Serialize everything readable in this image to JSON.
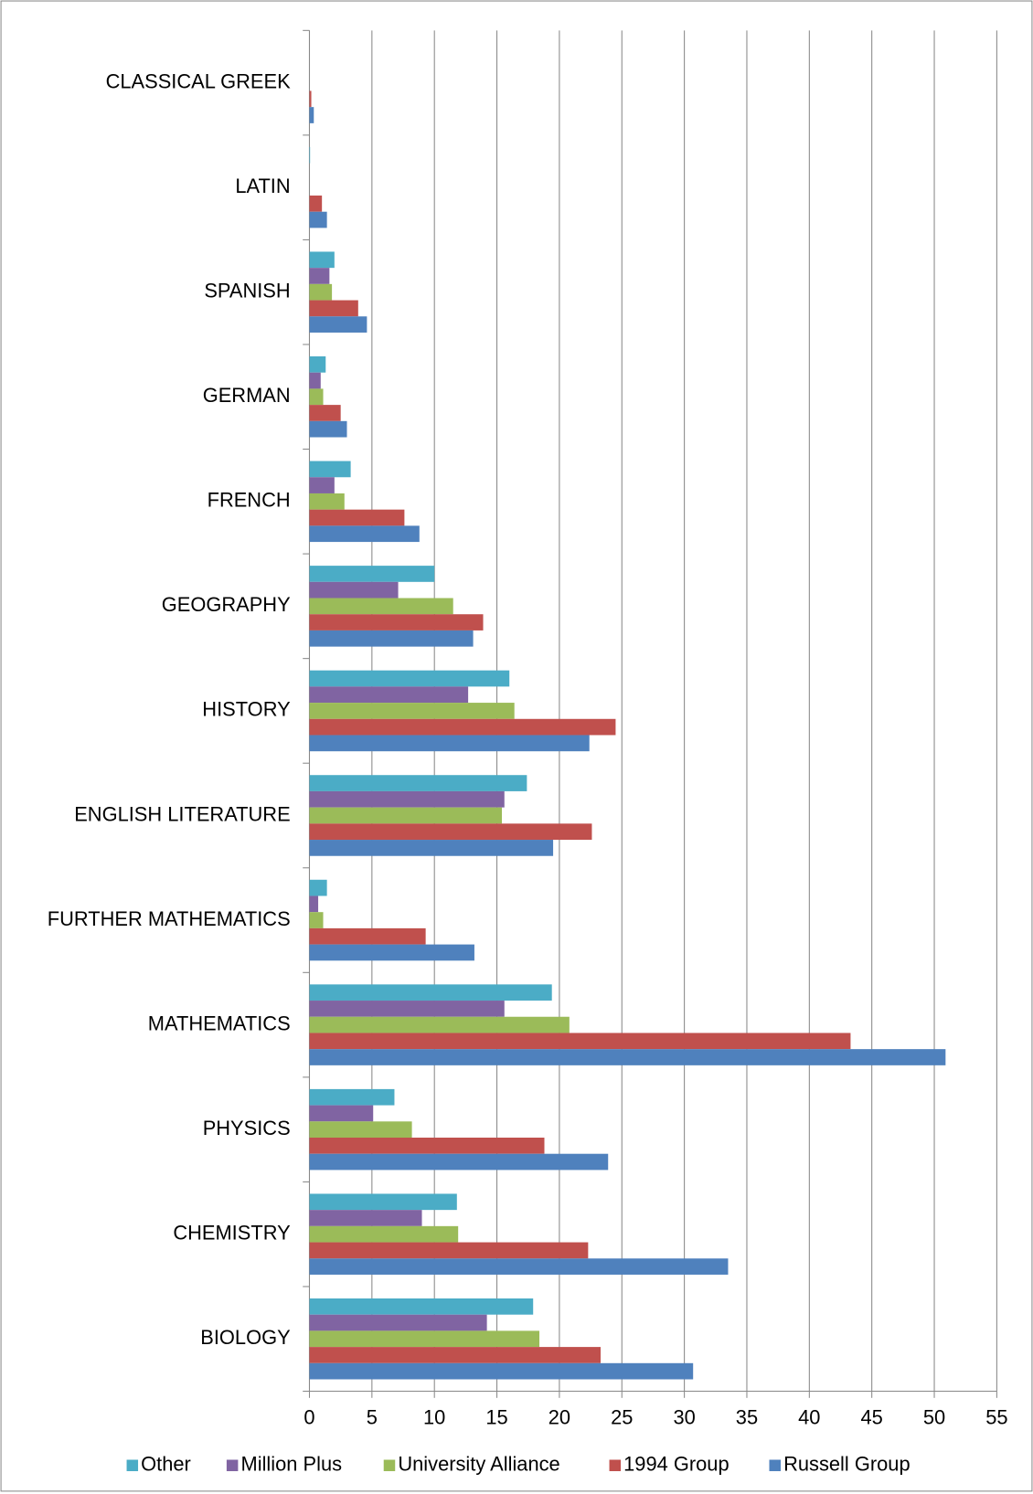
{
  "chart_data": {
    "type": "hbar",
    "categories": [
      "CLASSICAL GREEK",
      "LATIN",
      "SPANISH",
      "GERMAN",
      "FRENCH",
      "GEOGRAPHY",
      "HISTORY",
      "ENGLISH LITERATURE",
      "FURTHER MATHEMATICS",
      "MATHEMATICS",
      "PHYSICS",
      "CHEMISTRY",
      "BIOLOGY"
    ],
    "series": [
      {
        "name": "Other",
        "color": "#4bacc6",
        "values": [
          0,
          0.05,
          2.0,
          1.3,
          3.3,
          10.0,
          16.0,
          17.4,
          1.4,
          19.4,
          6.8,
          11.8,
          17.9
        ]
      },
      {
        "name": "Million Plus",
        "color": "#8064a2",
        "values": [
          0,
          0,
          1.6,
          0.9,
          2.0,
          7.1,
          12.7,
          15.6,
          0.7,
          15.6,
          5.1,
          9.0,
          14.2
        ]
      },
      {
        "name": "University Alliance",
        "color": "#9bbb59",
        "values": [
          0,
          0,
          1.8,
          1.1,
          2.8,
          11.5,
          16.4,
          15.4,
          1.1,
          20.8,
          8.2,
          11.9,
          18.4
        ]
      },
      {
        "name": "1994 Group",
        "color": "#c0504d",
        "values": [
          0.15,
          1.0,
          3.9,
          2.5,
          7.6,
          13.9,
          24.5,
          22.6,
          9.3,
          43.3,
          18.8,
          22.3,
          23.3
        ]
      },
      {
        "name": "Russell Group",
        "color": "#4f81bd",
        "values": [
          0.35,
          1.4,
          4.6,
          3.0,
          8.8,
          13.1,
          22.4,
          19.5,
          13.2,
          50.9,
          23.9,
          33.5,
          30.7
        ]
      }
    ],
    "xlim": [
      0,
      55
    ],
    "xticks": [
      0,
      5,
      10,
      15,
      20,
      25,
      30,
      35,
      40,
      45,
      50,
      55
    ],
    "grid": true,
    "legend": "bottom"
  }
}
